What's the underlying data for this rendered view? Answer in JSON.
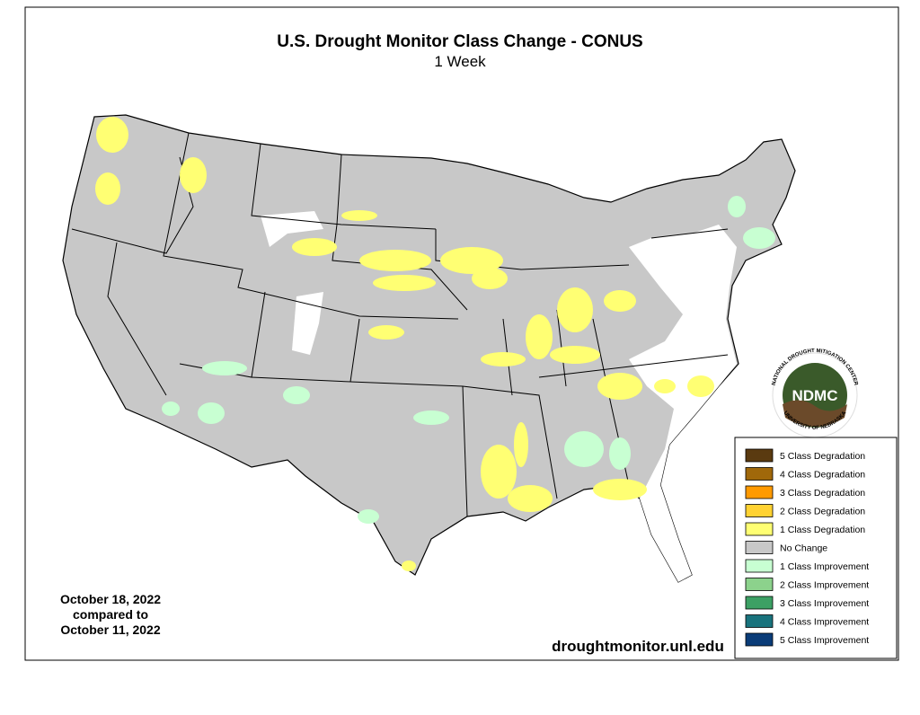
{
  "header": {
    "title": "U.S. Drought Monitor Class Change - CONUS",
    "subtitle": "1 Week"
  },
  "date_note": {
    "lines": [
      "October 18, 2022",
      "compared to",
      "October 11, 2022"
    ]
  },
  "source": "droughtmonitor.unl.edu",
  "logo": {
    "text": "NDMC",
    "ring_top": "NATIONAL DROUGHT MITIGATION CENTER",
    "ring_bottom": "UNIVERSITY OF NEBRASKA"
  },
  "legend": {
    "items": [
      {
        "label": "5 Class Degradation",
        "color": "#5a3a10"
      },
      {
        "label": "4 Class Degradation",
        "color": "#a0680a"
      },
      {
        "label": "3 Class Degradation",
        "color": "#ff9a00"
      },
      {
        "label": "2 Class Degradation",
        "color": "#ffd232"
      },
      {
        "label": "1 Class Degradation",
        "color": "#ffff73"
      },
      {
        "label": "No Change",
        "color": "#c8c8c8"
      },
      {
        "label": "1 Class Improvement",
        "color": "#c8ffd2"
      },
      {
        "label": "2 Class Improvement",
        "color": "#8cd28c"
      },
      {
        "label": "3 Class Improvement",
        "color": "#3ca064"
      },
      {
        "label": "4 Class Improvement",
        "color": "#19737d"
      },
      {
        "label": "5 Class Improvement",
        "color": "#0a3c78"
      }
    ]
  }
}
